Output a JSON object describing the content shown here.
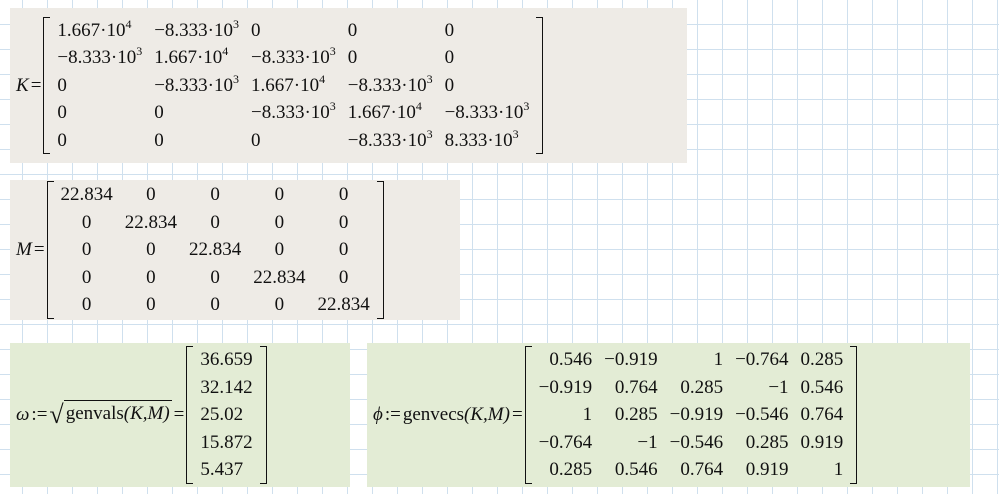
{
  "regions": [
    {
      "lhs": "K",
      "op": "=",
      "matrix": [
        [
          {
            "base": "1.667·10",
            "exp": "4"
          },
          {
            "base": "−8.333·10",
            "exp": "3"
          },
          "0",
          "0",
          "0"
        ],
        [
          {
            "base": "−8.333·10",
            "exp": "3"
          },
          {
            "base": "1.667·10",
            "exp": "4"
          },
          {
            "base": "−8.333·10",
            "exp": "3"
          },
          "0",
          "0"
        ],
        [
          "0",
          {
            "base": "−8.333·10",
            "exp": "3"
          },
          {
            "base": "1.667·10",
            "exp": "4"
          },
          {
            "base": "−8.333·10",
            "exp": "3"
          },
          "0"
        ],
        [
          "0",
          "0",
          {
            "base": "−8.333·10",
            "exp": "3"
          },
          {
            "base": "1.667·10",
            "exp": "4"
          },
          {
            "base": "−8.333·10",
            "exp": "3"
          }
        ],
        [
          "0",
          "0",
          "0",
          {
            "base": "−8.333·10",
            "exp": "3"
          },
          {
            "base": "8.333·10",
            "exp": "3"
          }
        ]
      ]
    },
    {
      "lhs": "M",
      "op": "=",
      "matrix": [
        [
          "22.834",
          "0",
          "0",
          "0",
          "0"
        ],
        [
          "0",
          "22.834",
          "0",
          "0",
          "0"
        ],
        [
          "0",
          "0",
          "22.834",
          "0",
          "0"
        ],
        [
          "0",
          "0",
          "0",
          "22.834",
          "0"
        ],
        [
          "0",
          "0",
          "0",
          "0",
          "22.834"
        ]
      ]
    },
    {
      "lhs": "ω",
      "assign": ":=",
      "func": "genvals",
      "args": "(K,M)",
      "op": "=",
      "matrix": [
        [
          "36.659"
        ],
        [
          "32.142"
        ],
        [
          "25.02"
        ],
        [
          "15.872"
        ],
        [
          "5.437"
        ]
      ]
    },
    {
      "lhs": "ϕ",
      "assign": ":=",
      "func": "genvecs",
      "args": "(K,M)",
      "op": "=",
      "matrix": [
        [
          "0.546",
          "−0.919",
          "1",
          "−0.764",
          "0.285"
        ],
        [
          "−0.919",
          "0.764",
          "0.285",
          "−1",
          "0.546"
        ],
        [
          "1",
          "0.285",
          "−0.919",
          "−0.546",
          "0.764"
        ],
        [
          "−0.764",
          "−1",
          "−0.546",
          "0.285",
          "0.919"
        ],
        [
          "0.285",
          "0.546",
          "0.764",
          "0.919",
          "1"
        ]
      ]
    }
  ]
}
